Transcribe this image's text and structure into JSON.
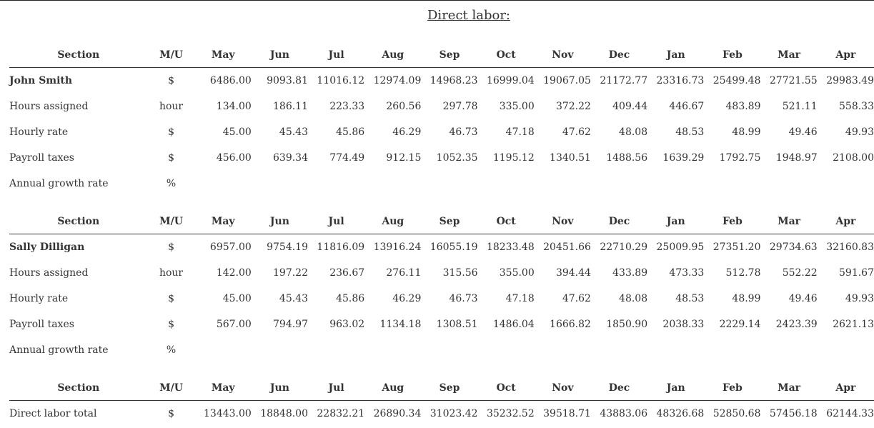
{
  "title": "Direct labor:",
  "headers": [
    "Section",
    "M/U",
    "May",
    "Jun",
    "Jul",
    "Aug",
    "Sep",
    "Oct",
    "Nov",
    "Dec",
    "Jan",
    "Feb",
    "Mar",
    "Apr"
  ],
  "tables": [
    {
      "rows": [
        {
          "label": "John Smith",
          "unit": "$",
          "values": [
            "6486.00",
            "9093.81",
            "11016.12",
            "12974.09",
            "14968.23",
            "16999.04",
            "19067.05",
            "21172.77",
            "23316.73",
            "25499.48",
            "27721.55",
            "29983.49"
          ]
        },
        {
          "label": "Hours assigned",
          "unit": "hour",
          "values": [
            "134.00",
            "186.11",
            "223.33",
            "260.56",
            "297.78",
            "335.00",
            "372.22",
            "409.44",
            "446.67",
            "483.89",
            "521.11",
            "558.33"
          ]
        },
        {
          "label": "Hourly rate",
          "unit": "$",
          "values": [
            "45.00",
            "45.43",
            "45.86",
            "46.29",
            "46.73",
            "47.18",
            "47.62",
            "48.08",
            "48.53",
            "48.99",
            "49.46",
            "49.93"
          ]
        },
        {
          "label": "Payroll taxes",
          "unit": "$",
          "values": [
            "456.00",
            "639.34",
            "774.49",
            "912.15",
            "1052.35",
            "1195.12",
            "1340.51",
            "1488.56",
            "1639.29",
            "1792.75",
            "1948.97",
            "2108.00"
          ]
        },
        {
          "label": "Annual growth rate",
          "unit": "%",
          "values": [
            "",
            "",
            "",
            "",
            "",
            "",
            "",
            "",
            "",
            "",
            "",
            ""
          ]
        }
      ]
    },
    {
      "rows": [
        {
          "label": "Sally Dilligan",
          "unit": "$",
          "values": [
            "6957.00",
            "9754.19",
            "11816.09",
            "13916.24",
            "16055.19",
            "18233.48",
            "20451.66",
            "22710.29",
            "25009.95",
            "27351.20",
            "29734.63",
            "32160.83"
          ]
        },
        {
          "label": "Hours assigned",
          "unit": "hour",
          "values": [
            "142.00",
            "197.22",
            "236.67",
            "276.11",
            "315.56",
            "355.00",
            "394.44",
            "433.89",
            "473.33",
            "512.78",
            "552.22",
            "591.67"
          ]
        },
        {
          "label": "Hourly rate",
          "unit": "$",
          "values": [
            "45.00",
            "45.43",
            "45.86",
            "46.29",
            "46.73",
            "47.18",
            "47.62",
            "48.08",
            "48.53",
            "48.99",
            "49.46",
            "49.93"
          ]
        },
        {
          "label": "Payroll taxes",
          "unit": "$",
          "values": [
            "567.00",
            "794.97",
            "963.02",
            "1134.18",
            "1308.51",
            "1486.04",
            "1666.82",
            "1850.90",
            "2038.33",
            "2229.14",
            "2423.39",
            "2621.13"
          ]
        },
        {
          "label": "Annual growth rate",
          "unit": "%",
          "values": [
            "",
            "",
            "",
            "",
            "",
            "",
            "",
            "",
            "",
            "",
            "",
            ""
          ]
        }
      ]
    },
    {
      "rows": [
        {
          "label": "Direct labor total",
          "unit": "$",
          "values": [
            "13443.00",
            "18848.00",
            "22832.21",
            "26890.34",
            "31023.42",
            "35232.52",
            "39518.71",
            "43883.06",
            "48326.68",
            "52850.68",
            "57456.18",
            "62144.33"
          ]
        }
      ]
    }
  ]
}
